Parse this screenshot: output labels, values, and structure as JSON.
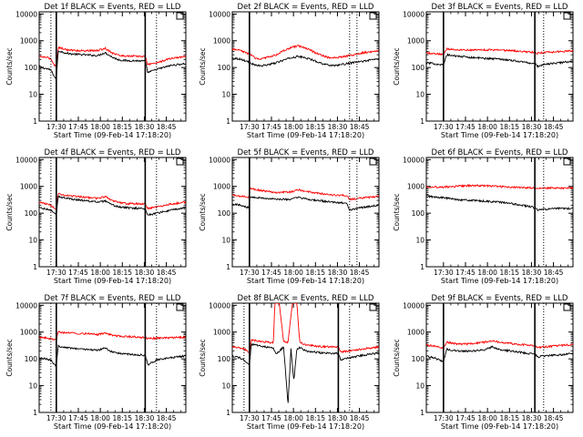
{
  "figure": {
    "xlabel": "Start Time (09-Feb-14 17:18:20)",
    "ylabel": "Counts/sec",
    "x_ticks": [
      "17:30",
      "17:45",
      "18:00",
      "18:15",
      "18:30",
      "18:45"
    ],
    "y_ticks": [
      "1",
      "10",
      "100",
      "1000",
      "10000"
    ],
    "colors": {
      "events": "#000000",
      "lld": "#ff0000"
    }
  },
  "chart_data": [
    {
      "type": "line",
      "title": "Det 1f BLACK = Events, RED = LLD",
      "x_unit": "minutes after 17:18:20",
      "xlim": [
        0,
        100
      ],
      "ylim": [
        1,
        12000
      ],
      "yscale": "log",
      "markers": {
        "solid": [
          11.7,
          72.3
        ],
        "dotted": [
          8.0,
          80.0
        ]
      },
      "series": [
        {
          "name": "Events",
          "x": [
            0,
            2,
            5,
            8,
            11,
            11.7,
            13,
            20,
            30,
            40,
            45,
            50,
            55,
            60,
            65,
            70,
            72.3,
            74,
            80,
            90,
            100
          ],
          "y": [
            110,
            100,
            90,
            80,
            40,
            40,
            420,
            330,
            300,
            280,
            360,
            240,
            190,
            180,
            180,
            175,
            175,
            65,
            85,
            120,
            140
          ]
        },
        {
          "name": "LLD",
          "x": [
            0,
            2,
            5,
            8,
            11,
            11.7,
            13,
            20,
            30,
            40,
            45,
            50,
            55,
            60,
            65,
            70,
            72.3,
            74,
            80,
            90,
            100
          ],
          "y": [
            260,
            250,
            240,
            210,
            110,
            110,
            560,
            450,
            420,
            430,
            520,
            350,
            280,
            270,
            265,
            260,
            260,
            130,
            150,
            220,
            260
          ]
        }
      ]
    },
    {
      "type": "line",
      "title": "Det 2f BLACK = Events, RED = LLD",
      "x_unit": "minutes after 17:18:20",
      "xlim": [
        0,
        100
      ],
      "ylim": [
        1,
        12000
      ],
      "yscale": "log",
      "markers": {
        "solid": [
          11.7
        ],
        "dotted": [
          80.0,
          85.0
        ]
      },
      "series": [
        {
          "name": "Events",
          "x": [
            0,
            5,
            11.7,
            16,
            20,
            25,
            30,
            35,
            40,
            45,
            50,
            55,
            60,
            65,
            70,
            75,
            80,
            90,
            100
          ],
          "y": [
            230,
            210,
            160,
            120,
            115,
            130,
            150,
            190,
            230,
            260,
            230,
            190,
            150,
            125,
            120,
            130,
            145,
            175,
            215
          ]
        },
        {
          "name": "LLD",
          "x": [
            0,
            5,
            11.7,
            16,
            20,
            25,
            30,
            35,
            40,
            45,
            50,
            55,
            60,
            65,
            70,
            75,
            80,
            90,
            100
          ],
          "y": [
            480,
            440,
            320,
            220,
            210,
            250,
            300,
            420,
            550,
            640,
            540,
            400,
            300,
            240,
            230,
            250,
            280,
            360,
            440
          ]
        }
      ]
    },
    {
      "type": "line",
      "title": "Det 3f BLACK = Events, RED = LLD",
      "x_unit": "minutes after 17:18:20",
      "xlim": [
        0,
        100
      ],
      "ylim": [
        1,
        12000
      ],
      "yscale": "log",
      "markers": {
        "solid": [
          11.7,
          74.0
        ],
        "dotted": [
          80.0
        ]
      },
      "series": [
        {
          "name": "Events",
          "x": [
            0,
            5,
            11.7,
            14,
            20,
            30,
            40,
            50,
            60,
            70,
            74,
            76,
            80,
            90,
            100
          ],
          "y": [
            150,
            140,
            125,
            300,
            270,
            240,
            220,
            210,
            180,
            150,
            140,
            110,
            130,
            150,
            170
          ]
        },
        {
          "name": "LLD",
          "x": [
            0,
            5,
            11.7,
            14,
            20,
            30,
            40,
            50,
            60,
            70,
            74,
            76,
            80,
            90,
            100
          ],
          "y": [
            360,
            330,
            310,
            500,
            470,
            450,
            460,
            450,
            420,
            380,
            360,
            340,
            360,
            390,
            420
          ]
        }
      ]
    },
    {
      "type": "line",
      "title": "Det 4f BLACK = Events, RED = LLD",
      "x_unit": "minutes after 17:18:20",
      "xlim": [
        0,
        100
      ],
      "ylim": [
        1,
        12000
      ],
      "yscale": "log",
      "markers": {
        "solid": [
          11.7,
          72.3
        ],
        "dotted": [
          8.0,
          80.0
        ]
      },
      "series": [
        {
          "name": "Events",
          "x": [
            0,
            2,
            5,
            8,
            11,
            11.7,
            13,
            20,
            30,
            40,
            45,
            50,
            55,
            60,
            65,
            70,
            72.3,
            74,
            80,
            90,
            100
          ],
          "y": [
            170,
            150,
            140,
            130,
            90,
            90,
            420,
            350,
            300,
            260,
            280,
            200,
            170,
            160,
            155,
            150,
            150,
            85,
            100,
            130,
            160
          ]
        },
        {
          "name": "LLD",
          "x": [
            0,
            2,
            5,
            8,
            11,
            11.7,
            13,
            20,
            30,
            40,
            45,
            50,
            55,
            60,
            65,
            70,
            72.3,
            74,
            80,
            90,
            100
          ],
          "y": [
            260,
            240,
            220,
            200,
            150,
            150,
            520,
            450,
            400,
            360,
            420,
            300,
            250,
            230,
            225,
            220,
            220,
            150,
            170,
            220,
            260
          ]
        }
      ]
    },
    {
      "type": "line",
      "title": "Det 5f BLACK = Events, RED = LLD",
      "x_unit": "minutes after 17:18:20",
      "xlim": [
        0,
        100
      ],
      "ylim": [
        1,
        12000
      ],
      "yscale": "log",
      "markers": {
        "solid": [
          11.7
        ],
        "dotted": [
          80.0,
          85.0
        ]
      },
      "series": [
        {
          "name": "Events",
          "x": [
            0,
            5,
            11.3,
            12,
            20,
            30,
            40,
            45,
            50,
            60,
            70,
            78,
            80,
            82,
            90,
            100
          ],
          "y": [
            230,
            200,
            160,
            420,
            370,
            330,
            330,
            390,
            340,
            290,
            250,
            240,
            130,
            140,
            170,
            200
          ]
        },
        {
          "name": "LLD",
          "x": [
            0,
            5,
            11.3,
            12,
            20,
            30,
            40,
            45,
            50,
            60,
            70,
            78,
            80,
            82,
            90,
            100
          ],
          "y": [
            470,
            430,
            400,
            850,
            700,
            600,
            620,
            750,
            650,
            540,
            470,
            460,
            320,
            330,
            380,
            420
          ]
        }
      ]
    },
    {
      "type": "line",
      "title": "Det 6f BLACK = Events, RED = LLD",
      "x_unit": "minutes after 17:18:20",
      "xlim": [
        0,
        100
      ],
      "ylim": [
        1,
        12000
      ],
      "yscale": "log",
      "markers": {
        "solid": [
          74.0
        ],
        "dotted": [
          80.0
        ]
      },
      "series": [
        {
          "name": "Events",
          "x": [
            0,
            5,
            11.7,
            20,
            30,
            40,
            50,
            60,
            70,
            74,
            76,
            80,
            90,
            100
          ],
          "y": [
            450,
            400,
            380,
            330,
            300,
            280,
            260,
            220,
            180,
            160,
            130,
            140,
            150,
            150
          ]
        },
        {
          "name": "LLD",
          "x": [
            0,
            5,
            11.7,
            20,
            30,
            40,
            50,
            60,
            70,
            74,
            76,
            80,
            90,
            100
          ],
          "y": [
            980,
            950,
            950,
            1000,
            1080,
            1060,
            980,
            920,
            880,
            860,
            860,
            870,
            870,
            880
          ]
        }
      ]
    },
    {
      "type": "line",
      "title": "Det 7f BLACK = Events, RED = LLD",
      "x_unit": "minutes after 17:18:20",
      "xlim": [
        0,
        100
      ],
      "ylim": [
        1,
        12000
      ],
      "yscale": "log",
      "markers": {
        "solid": [
          11.7,
          72.3
        ],
        "dotted": [
          8.0,
          80.0
        ]
      },
      "series": [
        {
          "name": "Events",
          "x": [
            0,
            2,
            5,
            8,
            11,
            11.7,
            13,
            20,
            30,
            40,
            45,
            50,
            55,
            60,
            65,
            70,
            72.3,
            74,
            80,
            90,
            100
          ],
          "y": [
            110,
            105,
            100,
            90,
            55,
            55,
            300,
            260,
            230,
            210,
            250,
            180,
            160,
            150,
            145,
            140,
            140,
            60,
            90,
            110,
            130
          ]
        },
        {
          "name": "LLD",
          "x": [
            0,
            2,
            5,
            8,
            11,
            11.7,
            13,
            20,
            30,
            40,
            45,
            50,
            55,
            60,
            65,
            70,
            72.3,
            74,
            80,
            90,
            100
          ],
          "y": [
            620,
            620,
            600,
            560,
            520,
            520,
            1000,
            940,
            880,
            820,
            900,
            780,
            700,
            680,
            660,
            640,
            640,
            560,
            600,
            620,
            640
          ]
        }
      ]
    },
    {
      "type": "line",
      "title": "Det 8f BLACK = Events, RED = LLD",
      "x_unit": "minutes after 17:18:20",
      "xlim": [
        0,
        100
      ],
      "ylim": [
        1,
        12000
      ],
      "yscale": "log",
      "markers": {
        "solid": [
          11.7,
          72.3
        ],
        "dotted": [
          8.0,
          80.0
        ]
      },
      "series": [
        {
          "name": "Events",
          "x": [
            0,
            5,
            8,
            11,
            11.7,
            13,
            20,
            28,
            30,
            35,
            38,
            40,
            42,
            44,
            46,
            50,
            60,
            70,
            72.3,
            74,
            80,
            90,
            100
          ],
          "y": [
            130,
            110,
            90,
            60,
            60,
            350,
            300,
            250,
            150,
            280,
            2,
            240,
            15,
            230,
            270,
            200,
            170,
            160,
            160,
            90,
            110,
            140,
            170
          ]
        },
        {
          "name": "LLD",
          "x": [
            0,
            5,
            8,
            11,
            11.7,
            13,
            20,
            28,
            29,
            32,
            35,
            38,
            41,
            44,
            46,
            50,
            60,
            70,
            72.3,
            74,
            80,
            90,
            100
          ],
          "y": [
            280,
            260,
            240,
            180,
            180,
            520,
            440,
            400,
            12000,
            12000,
            440,
            420,
            12000,
            12000,
            410,
            330,
            290,
            280,
            280,
            180,
            200,
            240,
            280
          ]
        }
      ]
    },
    {
      "type": "line",
      "title": "Det 9f BLACK = Events, RED = LLD",
      "x_unit": "minutes after 17:18:20",
      "xlim": [
        0,
        100
      ],
      "ylim": [
        1,
        12000
      ],
      "yscale": "log",
      "markers": {
        "solid": [
          11.7,
          74.0
        ],
        "dotted": [
          80.0
        ]
      },
      "series": [
        {
          "name": "Events",
          "x": [
            0,
            5,
            11.7,
            14,
            20,
            30,
            40,
            45,
            50,
            60,
            70,
            74,
            76,
            80,
            90,
            100
          ],
          "y": [
            130,
            110,
            80,
            230,
            200,
            190,
            220,
            280,
            220,
            190,
            160,
            150,
            120,
            130,
            140,
            160
          ]
        },
        {
          "name": "LLD",
          "x": [
            0,
            5,
            11.7,
            14,
            20,
            30,
            40,
            45,
            50,
            60,
            70,
            74,
            76,
            80,
            90,
            100
          ],
          "y": [
            330,
            300,
            260,
            420,
            360,
            360,
            420,
            480,
            420,
            360,
            320,
            300,
            260,
            280,
            310,
            340
          ]
        }
      ]
    }
  ]
}
